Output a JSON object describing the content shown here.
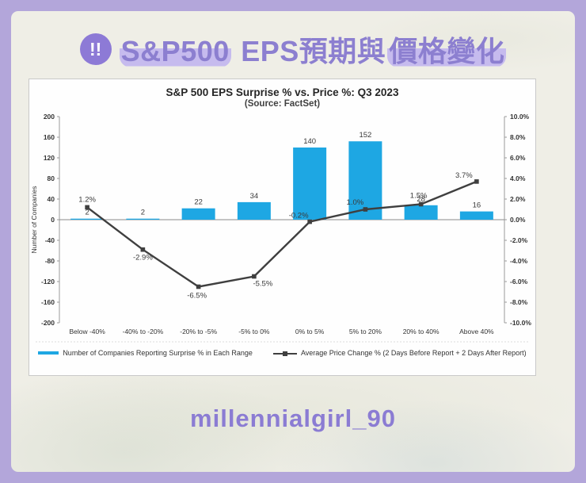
{
  "header": {
    "icon_glyph": "!!",
    "title_parts": [
      {
        "text": "S&P500",
        "highlight": true
      },
      {
        "text": " EPS預期與",
        "highlight": false
      },
      {
        "text": "價格變化",
        "highlight": true
      }
    ]
  },
  "chart_data": {
    "type": "bar+line combo",
    "title": "S&P 500 EPS Surprise % vs. Price %: Q3 2023",
    "subtitle": "(Source: FactSet)",
    "categories": [
      "Below -40%",
      "-40% to -20%",
      "-20% to -5%",
      "-5% to 0%",
      "0% to 5%",
      "5% to 20%",
      "20% to 40%",
      "Above 40%"
    ],
    "series": [
      {
        "name": "Number of Companies Reporting Surprise % in Each Range",
        "type": "bar",
        "axis": "left",
        "color": "#1ea7e3",
        "values": [
          2,
          2,
          22,
          34,
          140,
          152,
          28,
          16
        ]
      },
      {
        "name": "Average Price Change % (2 Days Before Report + 2 Days After Report)",
        "type": "line",
        "axis": "right",
        "color": "#3f3f3f",
        "values": [
          1.2,
          -2.9,
          -6.5,
          -5.5,
          -0.2,
          1.0,
          1.5,
          3.7
        ],
        "labels": [
          "1.2%",
          "-2.9%",
          "-6.5%",
          "-5.5%",
          "-0.2%",
          "1.0%",
          "1.5%",
          "3.7%"
        ],
        "label_offsets": [
          [
            0,
            -7
          ],
          [
            0,
            13
          ],
          [
            -2,
            14
          ],
          [
            11,
            12
          ],
          [
            -14,
            -5
          ],
          [
            -13,
            -6
          ],
          [
            -3,
            -8
          ],
          [
            -16,
            -5
          ]
        ]
      }
    ],
    "left_axis": {
      "label": "Number of Companies",
      "min": -200,
      "max": 200,
      "step": 40
    },
    "right_axis": {
      "min": -10,
      "max": 10,
      "step": 2,
      "suffix": "%"
    },
    "legend_position": "bottom",
    "grid": false
  },
  "footer": {
    "handle": "millennialgirl_90"
  }
}
